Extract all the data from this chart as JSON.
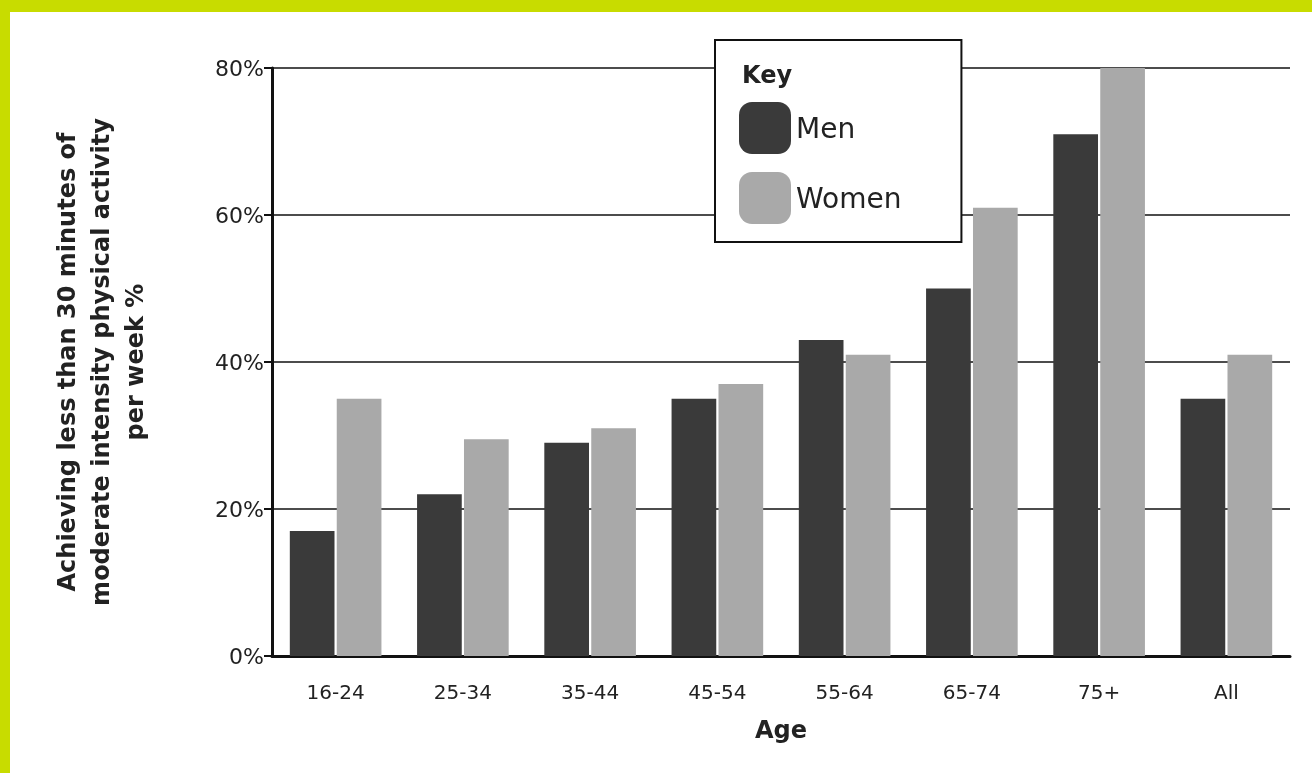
{
  "chart_data": {
    "type": "bar",
    "xlabel": "Age",
    "ylabel": "Achieving less than 30 minutes of\nmoderate intensity physical activity\nper week %",
    "legend_title": "Key",
    "categories": [
      "16-24",
      "25-34",
      "35-44",
      "45-54",
      "55-64",
      "65-74",
      "75+",
      "All"
    ],
    "series": [
      {
        "name": "Men",
        "color": "#3a3a3a",
        "values": [
          17,
          22,
          29,
          35,
          43,
          50,
          71,
          35
        ]
      },
      {
        "name": "Women",
        "color": "#a9a9a9",
        "values": [
          35,
          29.5,
          31,
          37,
          41,
          61,
          80,
          41
        ]
      }
    ],
    "ylim": [
      0,
      80
    ],
    "yticks": [
      {
        "value": 0,
        "label": "0%"
      },
      {
        "value": 20,
        "label": "20%"
      },
      {
        "value": 40,
        "label": "40%"
      },
      {
        "value": 60,
        "label": "60%"
      },
      {
        "value": 80,
        "label": "80%"
      }
    ],
    "grid": "y",
    "legend": "top"
  }
}
